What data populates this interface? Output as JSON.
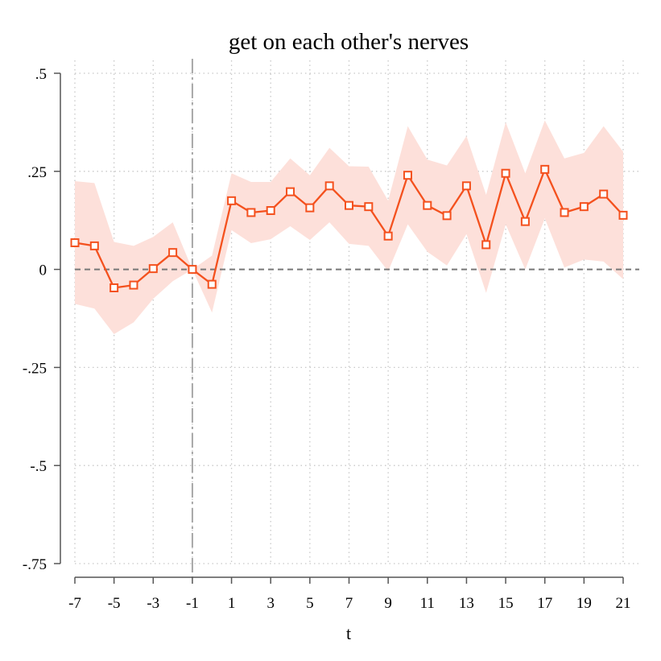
{
  "chart_data": {
    "type": "line",
    "title": "get on each other's nerves",
    "xlabel": "t",
    "ylabel": "",
    "xlim": [
      -7,
      21
    ],
    "ylim": [
      -0.75,
      0.5
    ],
    "x_ticks": [
      -7,
      -5,
      -3,
      -1,
      1,
      3,
      5,
      7,
      9,
      11,
      13,
      15,
      17,
      19,
      21
    ],
    "y_ticks": [
      -0.75,
      -0.5,
      -0.25,
      0,
      0.25,
      0.5
    ],
    "y_tick_labels": [
      "-.75",
      "-.5",
      "-.25",
      "0",
      ".25",
      ".5"
    ],
    "grid": true,
    "reference_lines": {
      "x": -1,
      "y": 0
    },
    "colors": {
      "line": "#f4511e",
      "band": "#fde0da",
      "ref": "#777777",
      "grid": "#c8c8c8",
      "axis": "#555555"
    },
    "series": [
      {
        "x": [
          -7,
          -6,
          -5,
          -4,
          -3,
          -2,
          -1,
          0,
          1,
          2,
          3,
          4,
          5,
          6,
          7,
          8,
          9,
          10,
          11,
          12,
          13,
          14,
          15,
          16,
          17,
          18,
          19,
          20,
          21
        ],
        "y": [
          0.068,
          0.06,
          -0.047,
          -0.04,
          0.002,
          0.043,
          0.0,
          -0.038,
          0.175,
          0.145,
          0.15,
          0.198,
          0.157,
          0.213,
          0.163,
          0.16,
          0.085,
          0.24,
          0.163,
          0.137,
          0.213,
          0.063,
          0.245,
          0.122,
          0.255,
          0.145,
          0.16,
          0.192,
          0.138
        ],
        "ci_lower": [
          -0.088,
          -0.1,
          -0.165,
          -0.135,
          -0.075,
          -0.03,
          0.0,
          -0.11,
          0.1,
          0.067,
          0.077,
          0.11,
          0.075,
          0.12,
          0.065,
          0.06,
          -0.005,
          0.115,
          0.045,
          0.01,
          0.09,
          -0.06,
          0.115,
          0.0,
          0.13,
          0.005,
          0.025,
          0.02,
          -0.025
        ],
        "ci_upper": [
          0.225,
          0.22,
          0.07,
          0.06,
          0.083,
          0.12,
          0.0,
          0.035,
          0.245,
          0.223,
          0.223,
          0.283,
          0.24,
          0.31,
          0.263,
          0.262,
          0.175,
          0.365,
          0.28,
          0.265,
          0.34,
          0.19,
          0.375,
          0.245,
          0.38,
          0.283,
          0.297,
          0.365,
          0.3
        ]
      }
    ]
  }
}
